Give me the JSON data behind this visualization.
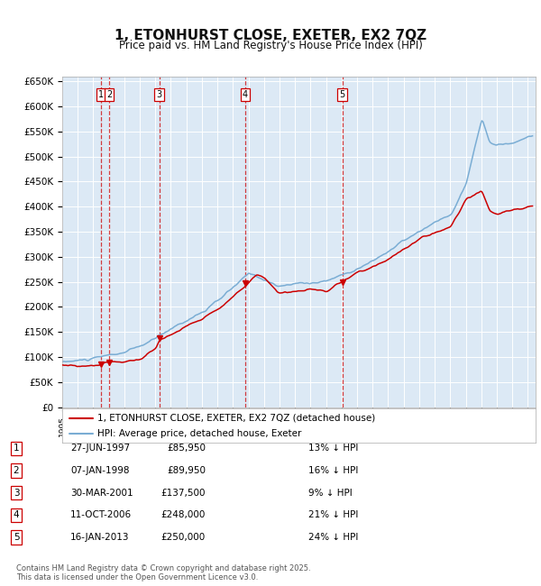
{
  "title": "1, ETONHURST CLOSE, EXETER, EX2 7QZ",
  "subtitle": "Price paid vs. HM Land Registry's House Price Index (HPI)",
  "bg_color": "#dce9f5",
  "grid_color": "#ffffff",
  "ylim": [
    0,
    660000
  ],
  "yticks": [
    0,
    50000,
    100000,
    150000,
    200000,
    250000,
    300000,
    350000,
    400000,
    450000,
    500000,
    550000,
    600000,
    650000
  ],
  "ytick_labels": [
    "£0",
    "£50K",
    "£100K",
    "£150K",
    "£200K",
    "£250K",
    "£300K",
    "£350K",
    "£400K",
    "£450K",
    "£500K",
    "£550K",
    "£600K",
    "£650K"
  ],
  "xmin": 1995.0,
  "xmax": 2025.5,
  "transactions": [
    {
      "num": 1,
      "date": "27-JUN-1997",
      "price": 85950,
      "pct": "13%",
      "x": 1997.49
    },
    {
      "num": 2,
      "date": "07-JAN-1998",
      "price": 89950,
      "pct": "16%",
      "x": 1998.03
    },
    {
      "num": 3,
      "date": "30-MAR-2001",
      "price": 137500,
      "pct": "9%",
      "x": 2001.25
    },
    {
      "num": 4,
      "date": "11-OCT-2006",
      "price": 248000,
      "pct": "21%",
      "x": 2006.78
    },
    {
      "num": 5,
      "date": "16-JAN-2013",
      "price": 250000,
      "pct": "24%",
      "x": 2013.04
    }
  ],
  "legend_line1": "1, ETONHURST CLOSE, EXETER, EX2 7QZ (detached house)",
  "legend_line2": "HPI: Average price, detached house, Exeter",
  "table_rows": [
    [
      "1",
      "27-JUN-1997",
      "£85,950",
      "13% ↓ HPI"
    ],
    [
      "2",
      "07-JAN-1998",
      "£89,950",
      "16% ↓ HPI"
    ],
    [
      "3",
      "30-MAR-2001",
      "£137,500",
      "9% ↓ HPI"
    ],
    [
      "4",
      "11-OCT-2006",
      "£248,000",
      "21% ↓ HPI"
    ],
    [
      "5",
      "16-JAN-2013",
      "£250,000",
      "24% ↓ HPI"
    ]
  ],
  "footer": "Contains HM Land Registry data © Crown copyright and database right 2025.\nThis data is licensed under the Open Government Licence v3.0.",
  "red_color": "#cc0000",
  "blue_color": "#7aadd4"
}
